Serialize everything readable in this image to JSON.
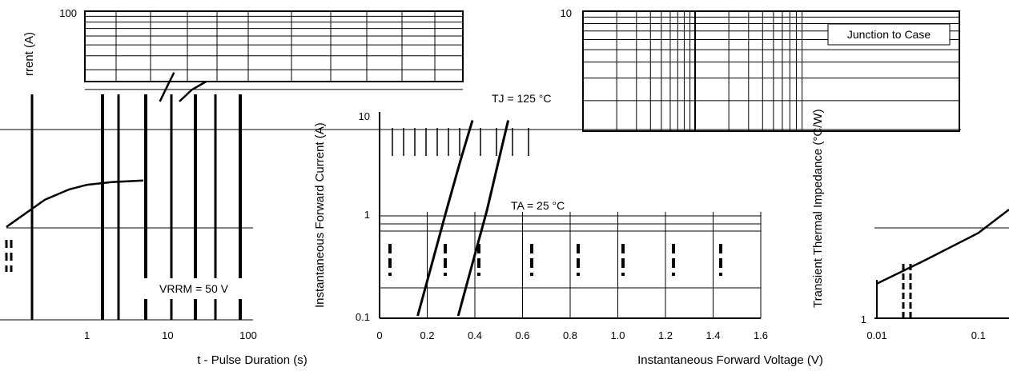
{
  "chart_data": [
    {
      "type": "line",
      "ylabel": "rrent (A)",
      "xlabel": "t - Pulse Duration (s)",
      "y_ticks": [
        "100"
      ],
      "x_ticks": [
        "1",
        "10",
        "100"
      ],
      "xlim": [
        0.1,
        100
      ],
      "ylim": [
        1,
        100
      ],
      "x_scale": "log",
      "y_scale": "log",
      "annotations": [
        "VRRM = 50 V"
      ],
      "series": [
        {
          "x": [
            0.1,
            0.3,
            0.6,
            1.0,
            2.0,
            5.0
          ],
          "y": [
            4.0,
            6.0,
            7.0,
            7.5,
            7.8,
            8.0
          ]
        },
        {
          "x": [
            8.0,
            10.0,
            12.0
          ],
          "y": [
            26.0,
            33.0,
            40.0
          ]
        },
        {
          "x": [
            14.0,
            20.0,
            30.0
          ],
          "y": [
            26.0,
            31.0,
            35.0
          ]
        }
      ]
    },
    {
      "type": "line",
      "ylabel": "Instantaneous Forward Current (A)",
      "xlabel": "Instantaneous Forward Voltage (V)",
      "y_ticks": [
        "10",
        "1",
        "0.1"
      ],
      "x_ticks": [
        "0",
        "0.2",
        "0.4",
        "0.6",
        "0.8",
        "1.0",
        "1.2",
        "1.4",
        "1.6"
      ],
      "xlim": [
        0,
        1.6
      ],
      "ylim": [
        0.1,
        10
      ],
      "y_scale": "log",
      "annotations": [
        "TJ = 125 °C",
        "TA = 25 °C"
      ],
      "series": [
        {
          "name": "TJ = 125 °C",
          "x": [
            0.16,
            0.22,
            0.28,
            0.34,
            0.39
          ],
          "y": [
            0.1,
            0.3,
            0.9,
            2.6,
            6.0
          ]
        },
        {
          "name": "TA = 25 °C",
          "x": [
            0.33,
            0.39,
            0.45,
            0.5,
            0.54
          ],
          "y": [
            0.1,
            0.3,
            0.9,
            2.6,
            6.0
          ]
        }
      ]
    },
    {
      "type": "line",
      "ylabel": "Transient Thermal Impedance (°C/W)",
      "y_ticks": [
        "10",
        "1"
      ],
      "x_ticks": [
        "0.01",
        "0.1"
      ],
      "xlim": [
        0.01,
        0.2
      ],
      "ylim": [
        1,
        10
      ],
      "x_scale": "log",
      "y_scale": "log",
      "legend": "Junction to Case",
      "series": [
        {
          "name": "Junction to Case",
          "x": [
            0.01,
            0.03,
            0.1,
            0.2
          ],
          "y": [
            1.45,
            1.9,
            2.6,
            3.4
          ]
        }
      ]
    }
  ]
}
